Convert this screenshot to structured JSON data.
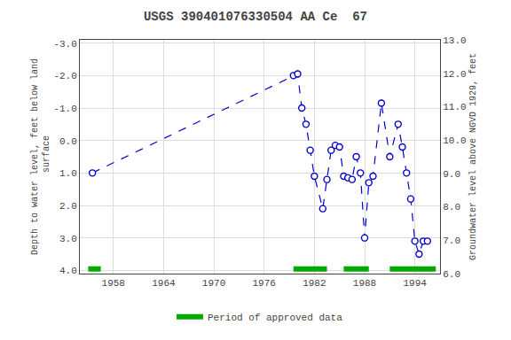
{
  "chart_data": {
    "type": "line",
    "title": "USGS 390401076330504 AA Ce  67",
    "ylabel": "Depth to water level, feet below land\n surface",
    "y2label": "Groundwater level above NGVD 1929, feet",
    "xlim": [
      1954,
      1997
    ],
    "ylim": [
      4.1,
      -3.1
    ],
    "y2lim": [
      6.0,
      13.0
    ],
    "xticks": [
      1958,
      1964,
      1970,
      1976,
      1982,
      1988,
      1994
    ],
    "yticks": [
      {
        "value": -3.0,
        "label": "-3.0"
      },
      {
        "value": -2.0,
        "label": "-2.0"
      },
      {
        "value": -1.0,
        "label": "-1.0"
      },
      {
        "value": 0.0,
        "label": "0.0"
      },
      {
        "value": 1.0,
        "label": "1.0"
      },
      {
        "value": 2.0,
        "label": "2.0"
      },
      {
        "value": 3.0,
        "label": "3.0"
      },
      {
        "value": 4.0,
        "label": "4.0"
      }
    ],
    "y2ticks": [
      {
        "value": 13.0,
        "label": "13.0"
      },
      {
        "value": 12.0,
        "label": "12.0"
      },
      {
        "value": 11.0,
        "label": "11.0"
      },
      {
        "value": 10.0,
        "label": "10.0"
      },
      {
        "value": 9.0,
        "label": "9.0"
      },
      {
        "value": 8.0,
        "label": "8.0"
      },
      {
        "value": 7.0,
        "label": "7.0"
      },
      {
        "value": 6.0,
        "label": "6.0"
      }
    ],
    "grid": true,
    "legend": "bottom",
    "series": [
      {
        "type": "line",
        "color": "#0000CC",
        "line_style": "dashed",
        "marker": "circle",
        "x": [
          1955.5,
          1979.5,
          1980.0,
          1980.5,
          1981.0,
          1981.5,
          1982.0,
          1983.0,
          1983.5,
          1984.0,
          1984.5,
          1985.0,
          1985.5,
          1986.0,
          1986.5,
          1987.0,
          1987.5,
          1988.0,
          1988.5,
          1989.0,
          1990.0,
          1991.0,
          1992.0,
          1992.5,
          1993.0,
          1993.5,
          1994.0,
          1994.5,
          1995.0,
          1995.5
        ],
        "values": [
          1.0,
          -2.0,
          -2.05,
          -1.0,
          -0.5,
          0.3,
          1.1,
          2.1,
          1.2,
          0.3,
          0.15,
          0.2,
          1.1,
          1.15,
          1.2,
          0.5,
          1.0,
          3.0,
          1.3,
          1.1,
          -1.15,
          0.5,
          -0.5,
          0.2,
          1.0,
          1.8,
          3.1,
          3.5,
          3.1,
          3.1
        ]
      },
      {
        "type": "bar",
        "orientation": "horizontal",
        "name": "Period of approved data",
        "color": "#00AA00",
        "values": [
          [
            1955.0,
            1956.5
          ],
          [
            1979.5,
            1983.5
          ],
          [
            1985.5,
            1988.5
          ],
          [
            1991.0,
            1996.5
          ]
        ]
      }
    ]
  }
}
